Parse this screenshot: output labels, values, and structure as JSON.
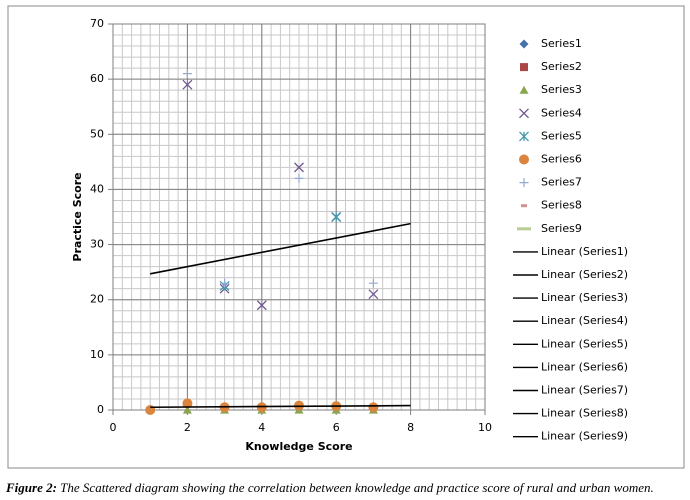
{
  "chart_data": {
    "type": "scatter",
    "x_label": "Knowledge Score",
    "y_label": "Practice Score",
    "xlim": [
      0,
      10
    ],
    "xticks": [
      0,
      2,
      4,
      6,
      8,
      10
    ],
    "ylim": [
      0,
      70
    ],
    "yticks": [
      0,
      10,
      20,
      30,
      40,
      50,
      60,
      70
    ],
    "grid": true,
    "minor_grid": {
      "x_step": 0.25,
      "y_step": 2
    },
    "legend": "right",
    "series": [
      {
        "name": "Series1",
        "marker": "diamond",
        "color": "#4572a7",
        "x": [],
        "values": []
      },
      {
        "name": "Series2",
        "marker": "square",
        "color": "#aa4643",
        "x": [],
        "values": []
      },
      {
        "name": "Series3",
        "marker": "triangle",
        "color": "#89a54e",
        "x": [
          2,
          3,
          4,
          5,
          6,
          7
        ],
        "values": [
          0,
          0,
          0,
          0,
          0,
          0
        ]
      },
      {
        "name": "Series4",
        "marker": "x",
        "color": "#71588f",
        "x": [
          2,
          3,
          4,
          5,
          6,
          7
        ],
        "values": [
          59,
          22,
          19,
          44,
          35,
          21
        ]
      },
      {
        "name": "Series5",
        "marker": "asterisk",
        "color": "#4198af",
        "x": [
          3,
          6
        ],
        "values": [
          22.5,
          35
        ]
      },
      {
        "name": "Series6",
        "marker": "circle",
        "color": "#db843d",
        "x": [
          1,
          2,
          3,
          4,
          5,
          6,
          7
        ],
        "values": [
          0,
          1.2,
          0.5,
          0.5,
          0.8,
          0.7,
          0.5
        ]
      },
      {
        "name": "Series7",
        "marker": "plus",
        "color": "#93a9cf",
        "x": [
          2,
          3,
          5,
          7
        ],
        "values": [
          61,
          23,
          42,
          23
        ]
      },
      {
        "name": "Series8",
        "marker": "dash",
        "color": "#d19392",
        "x": [],
        "values": []
      },
      {
        "name": "Series9",
        "marker": "bar",
        "color": "#b9cd96",
        "x": [],
        "values": []
      }
    ],
    "trendlines": [
      {
        "name": "Linear (Series1)",
        "color": "#000000",
        "x": [],
        "values": []
      },
      {
        "name": "Linear (Series2)",
        "color": "#000000",
        "x": [],
        "values": []
      },
      {
        "name": "Linear (Series3)",
        "color": "#000000",
        "x": [],
        "values": []
      },
      {
        "name": "Linear (Series4)",
        "color": "#000000",
        "x": [
          1,
          8
        ],
        "values": [
          24.7,
          33.8
        ]
      },
      {
        "name": "Linear (Series5)",
        "color": "#000000",
        "x": [],
        "values": []
      },
      {
        "name": "Linear (Series6)",
        "color": "#000000",
        "x": [
          1,
          8
        ],
        "values": [
          0.5,
          0.8
        ]
      },
      {
        "name": "Linear (Series7)",
        "color": "#000000",
        "x": [],
        "values": []
      },
      {
        "name": "Linear (Series8)",
        "color": "#000000",
        "x": [],
        "values": []
      },
      {
        "name": "Linear (Series9)",
        "color": "#000000",
        "x": [],
        "values": []
      }
    ]
  },
  "caption": {
    "label": "Figure 2:",
    "text": "The Scattered diagram showing the correlation between knowledge and practice score of rural and urban women."
  }
}
